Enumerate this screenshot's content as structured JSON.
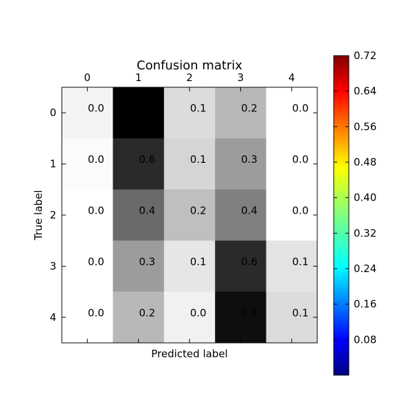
{
  "chart_data": {
    "type": "heatmap",
    "title": "Confusion matrix",
    "xlabel": "Predicted label",
    "ylabel": "True label",
    "x_tick_labels": [
      "0",
      "1",
      "2",
      "3",
      "4"
    ],
    "y_tick_labels": [
      "0",
      "1",
      "2",
      "3",
      "4"
    ],
    "values": [
      [
        0.03,
        0.72,
        0.1,
        0.2,
        0.0
      ],
      [
        0.01,
        0.6,
        0.12,
        0.28,
        0.0
      ],
      [
        0.0,
        0.42,
        0.18,
        0.36,
        0.0
      ],
      [
        0.0,
        0.28,
        0.07,
        0.6,
        0.08
      ],
      [
        0.0,
        0.2,
        0.04,
        0.68,
        0.1
      ]
    ],
    "cell_labels": [
      [
        "0.0",
        "",
        "0.1",
        "0.2",
        "0.0"
      ],
      [
        "0.0",
        "0.6",
        "0.1",
        "0.3",
        "0.0"
      ],
      [
        "0.0",
        "0.4",
        "0.2",
        "0.4",
        "0.0"
      ],
      [
        "0.0",
        "0.3",
        "0.1",
        "0.6",
        "0.1"
      ],
      [
        "0.0",
        "0.2",
        "0.0",
        "0.7",
        "0.1"
      ]
    ],
    "value_range": [
      0,
      0.72
    ],
    "cmap_matrix": "gray_r",
    "cmap_colorbar": "jet",
    "colorbar_ticks": [
      "0.08",
      "0.16",
      "0.24",
      "0.32",
      "0.40",
      "0.48",
      "0.56",
      "0.64",
      "0.72"
    ],
    "colorbar_tick_values": [
      0.08,
      0.16,
      0.24,
      0.32,
      0.4,
      0.48,
      0.56,
      0.64,
      0.72
    ],
    "colorbar_range": [
      0.0,
      0.72
    ],
    "grid": false,
    "colors": {
      "axis": "#000000",
      "background": "#ffffff"
    }
  }
}
